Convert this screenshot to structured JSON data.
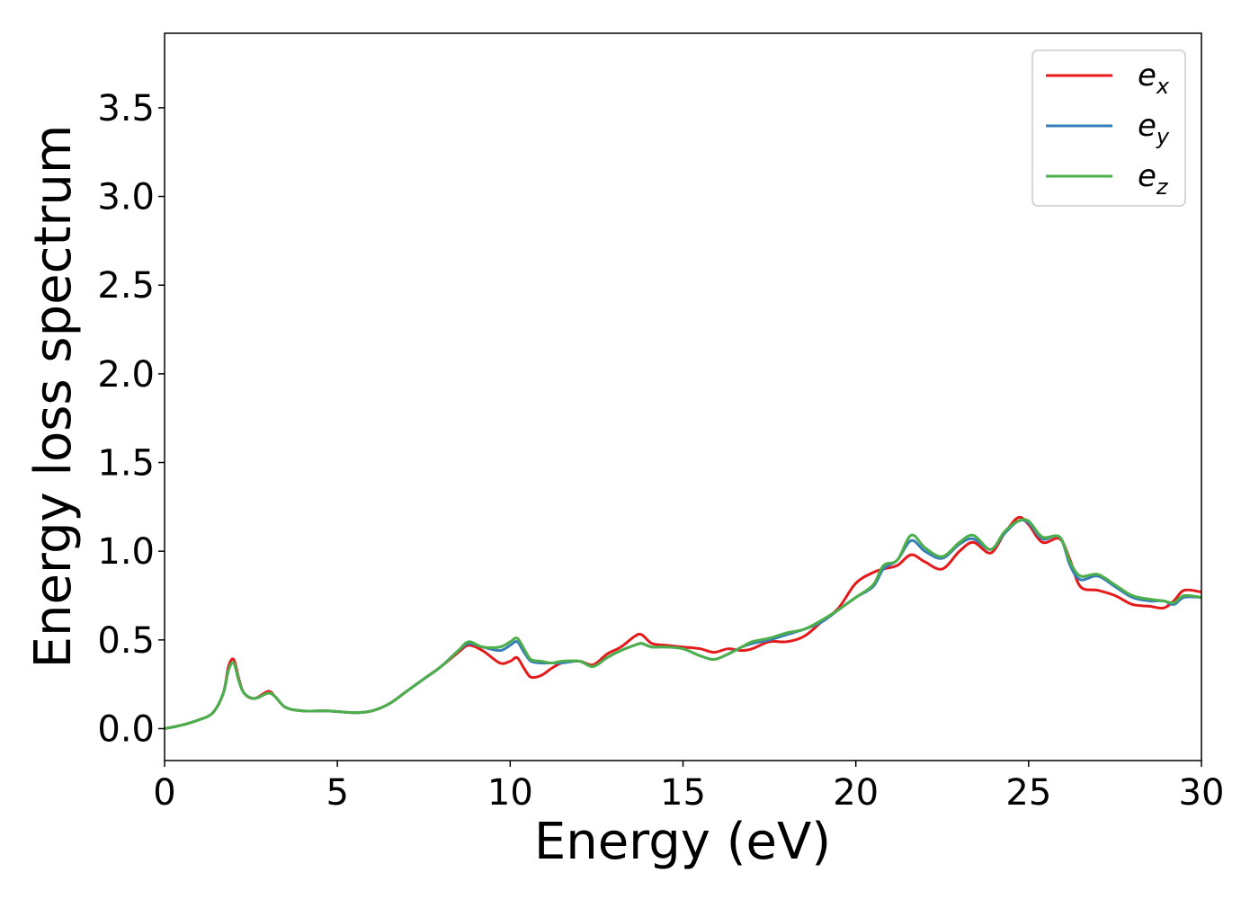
{
  "chart_data": {
    "type": "line",
    "title": "",
    "xlabel": "Energy (eV)",
    "ylabel": "Energy loss spectrum",
    "xlim": [
      0,
      30
    ],
    "ylim": [
      -0.18,
      3.92
    ],
    "xticks": [
      "0",
      "5",
      "10",
      "15",
      "20",
      "25",
      "30"
    ],
    "yticks": [
      "0.0",
      "0.5",
      "1.0",
      "1.5",
      "2.0",
      "2.5",
      "3.0",
      "3.5"
    ],
    "grid": false,
    "legend_position": "top-right",
    "series": [
      {
        "name": "e",
        "subscript": "x",
        "color": "#e41a1c",
        "x": [
          0,
          0.5,
          1,
          1.4,
          1.7,
          1.85,
          2,
          2.15,
          2.3,
          2.6,
          3,
          3.2,
          3.5,
          4,
          4.7,
          5.5,
          6,
          6.5,
          7,
          7.5,
          8,
          8.5,
          8.8,
          9.2,
          9.7,
          10,
          10.2,
          10.4,
          10.6,
          10.9,
          11.2,
          11.5,
          12,
          12.4,
          12.8,
          13.2,
          13.6,
          13.8,
          14.1,
          14.5,
          15,
          15.5,
          15.9,
          16.3,
          16.7,
          17,
          17.5,
          18,
          18.5,
          19,
          19.5,
          20,
          20.5,
          20.8,
          21.2,
          21.6,
          22,
          22.5,
          23,
          23.4,
          23.9,
          24.3,
          24.7,
          25,
          25.4,
          25.9,
          26.2,
          26.5,
          27,
          27.5,
          28,
          28.5,
          28.9,
          29.2,
          29.5,
          30
        ],
        "y": [
          0,
          0.02,
          0.05,
          0.09,
          0.2,
          0.35,
          0.39,
          0.28,
          0.2,
          0.17,
          0.21,
          0.18,
          0.12,
          0.1,
          0.1,
          0.09,
          0.1,
          0.14,
          0.21,
          0.28,
          0.35,
          0.43,
          0.47,
          0.44,
          0.37,
          0.38,
          0.4,
          0.34,
          0.29,
          0.3,
          0.34,
          0.37,
          0.38,
          0.36,
          0.42,
          0.46,
          0.52,
          0.53,
          0.48,
          0.47,
          0.46,
          0.45,
          0.43,
          0.45,
          0.44,
          0.45,
          0.49,
          0.49,
          0.52,
          0.6,
          0.68,
          0.82,
          0.88,
          0.9,
          0.92,
          0.98,
          0.94,
          0.9,
          1.0,
          1.05,
          0.99,
          1.1,
          1.19,
          1.15,
          1.05,
          1.07,
          0.95,
          0.8,
          0.78,
          0.75,
          0.7,
          0.69,
          0.68,
          0.72,
          0.78,
          0.77
        ]
      },
      {
        "name": "e",
        "subscript": "y",
        "color": "#377eb8",
        "x": [
          0,
          0.5,
          1,
          1.4,
          1.7,
          1.85,
          2,
          2.15,
          2.3,
          2.6,
          3,
          3.2,
          3.5,
          4,
          4.7,
          5.5,
          6,
          6.5,
          7,
          7.5,
          8,
          8.5,
          8.8,
          9.2,
          9.7,
          10,
          10.2,
          10.4,
          10.6,
          10.9,
          11.2,
          11.5,
          12,
          12.4,
          12.8,
          13.2,
          13.6,
          13.8,
          14.1,
          14.5,
          15,
          15.5,
          15.9,
          16.3,
          16.7,
          17,
          17.5,
          18,
          18.5,
          19,
          19.5,
          20,
          20.5,
          20.8,
          21.2,
          21.6,
          22,
          22.5,
          23,
          23.4,
          23.9,
          24.3,
          24.7,
          25,
          25.4,
          25.9,
          26.2,
          26.5,
          27,
          27.5,
          28,
          28.5,
          28.9,
          29.2,
          29.5,
          30
        ],
        "y": [
          0,
          0.02,
          0.05,
          0.09,
          0.2,
          0.33,
          0.37,
          0.27,
          0.2,
          0.17,
          0.2,
          0.18,
          0.12,
          0.1,
          0.1,
          0.09,
          0.1,
          0.14,
          0.21,
          0.28,
          0.35,
          0.44,
          0.48,
          0.46,
          0.44,
          0.47,
          0.49,
          0.43,
          0.38,
          0.37,
          0.37,
          0.37,
          0.38,
          0.35,
          0.4,
          0.44,
          0.47,
          0.48,
          0.46,
          0.46,
          0.45,
          0.41,
          0.39,
          0.42,
          0.46,
          0.48,
          0.5,
          0.53,
          0.56,
          0.6,
          0.67,
          0.74,
          0.8,
          0.9,
          0.95,
          1.06,
          1.0,
          0.96,
          1.04,
          1.07,
          1.01,
          1.1,
          1.17,
          1.16,
          1.07,
          1.08,
          0.92,
          0.84,
          0.86,
          0.8,
          0.74,
          0.72,
          0.72,
          0.7,
          0.74,
          0.74
        ]
      },
      {
        "name": "e",
        "subscript": "z",
        "color": "#4daf4a",
        "x": [
          0,
          0.5,
          1,
          1.4,
          1.7,
          1.85,
          2,
          2.15,
          2.3,
          2.6,
          3,
          3.2,
          3.5,
          4,
          4.7,
          5.5,
          6,
          6.5,
          7,
          7.5,
          8,
          8.5,
          8.8,
          9.2,
          9.7,
          10,
          10.2,
          10.4,
          10.6,
          10.9,
          11.2,
          11.5,
          12,
          12.4,
          12.8,
          13.2,
          13.6,
          13.8,
          14.1,
          14.5,
          15,
          15.5,
          15.9,
          16.3,
          16.7,
          17,
          17.5,
          18,
          18.5,
          19,
          19.5,
          20,
          20.5,
          20.8,
          21.2,
          21.6,
          22,
          22.5,
          23,
          23.4,
          23.9,
          24.3,
          24.7,
          25,
          25.4,
          25.9,
          26.2,
          26.5,
          27,
          27.5,
          28,
          28.5,
          28.9,
          29.2,
          29.5,
          30
        ],
        "y": [
          0,
          0.02,
          0.05,
          0.09,
          0.2,
          0.33,
          0.37,
          0.27,
          0.2,
          0.17,
          0.2,
          0.18,
          0.12,
          0.1,
          0.1,
          0.09,
          0.1,
          0.14,
          0.21,
          0.28,
          0.35,
          0.44,
          0.49,
          0.46,
          0.46,
          0.49,
          0.51,
          0.45,
          0.39,
          0.38,
          0.37,
          0.38,
          0.38,
          0.35,
          0.4,
          0.44,
          0.47,
          0.48,
          0.46,
          0.46,
          0.45,
          0.41,
          0.39,
          0.42,
          0.46,
          0.49,
          0.51,
          0.54,
          0.56,
          0.61,
          0.67,
          0.74,
          0.81,
          0.92,
          0.95,
          1.09,
          1.02,
          0.97,
          1.05,
          1.09,
          1.01,
          1.11,
          1.17,
          1.17,
          1.08,
          1.08,
          0.94,
          0.86,
          0.87,
          0.81,
          0.75,
          0.73,
          0.72,
          0.71,
          0.75,
          0.74
        ]
      }
    ]
  }
}
